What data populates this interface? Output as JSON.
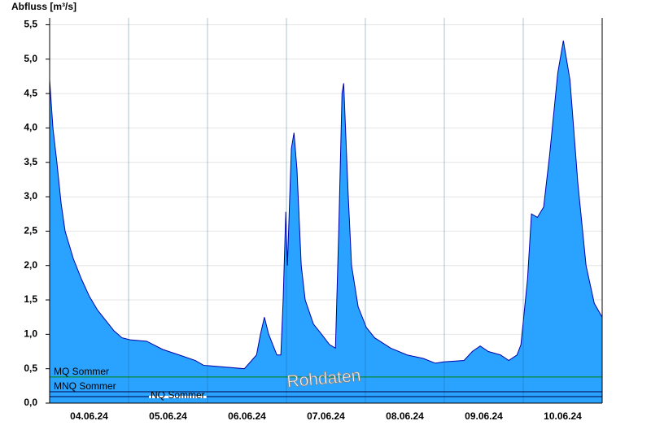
{
  "chart_data": {
    "type": "area",
    "y_label": "Abfluss [m³/s]",
    "watermark": "Rohdaten",
    "x": [
      0,
      1,
      2.2,
      3.5,
      4.7,
      7.2,
      9.7,
      12.1,
      14.6,
      17.1,
      19.6,
      22,
      24.5,
      29.5,
      34.4,
      39.4,
      44.3,
      46.8,
      59.2,
      62.9,
      64.1,
      65.3,
      66.6,
      69.1,
      70.3,
      71,
      71.8,
      72.3,
      73.5,
      74.3,
      75.2,
      76.5,
      77.7,
      80.2,
      82.7,
      85.1,
      86.9,
      87.9,
      88.9,
      89.4,
      90.8,
      91.8,
      93.8,
      96.3,
      98.8,
      103.7,
      108.7,
      113.6,
      117.3,
      119.8,
      126,
      128.5,
      130.9,
      133.4,
      137.1,
      139.6,
      142.1,
      143.3,
      145.3,
      146.5,
      148.3,
      150.2,
      152,
      154.5,
      156.2,
      158.2,
      160.6,
      163.1,
      165.6,
      168
    ],
    "series": [
      {
        "color": "#29a3ff",
        "line_color": "#0000aa",
        "values": [
          4.7,
          4.0,
          3.5,
          2.9,
          2.5,
          2.1,
          1.8,
          1.55,
          1.35,
          1.2,
          1.05,
          0.95,
          0.92,
          0.9,
          0.78,
          0.7,
          0.62,
          0.55,
          0.5,
          0.7,
          1.0,
          1.25,
          1.0,
          0.7,
          0.7,
          1.5,
          2.78,
          2.0,
          3.7,
          3.93,
          3.4,
          2.0,
          1.5,
          1.15,
          1.0,
          0.85,
          0.8,
          2.5,
          4.5,
          4.65,
          3.0,
          2.0,
          1.4,
          1.1,
          0.95,
          0.8,
          0.7,
          0.65,
          0.58,
          0.6,
          0.62,
          0.75,
          0.83,
          0.75,
          0.7,
          0.62,
          0.7,
          0.85,
          1.8,
          2.75,
          2.7,
          2.85,
          3.6,
          4.8,
          5.27,
          4.7,
          3.2,
          2.0,
          1.45,
          1.25
        ]
      }
    ],
    "xlim": [
      0,
      168
    ],
    "xticks": [
      {
        "value": 12,
        "label": "04.06.24"
      },
      {
        "value": 36,
        "label": "05.06.24"
      },
      {
        "value": 60,
        "label": "06.06.24"
      },
      {
        "value": 84,
        "label": "07.06.24"
      },
      {
        "value": 108,
        "label": "08.06.24"
      },
      {
        "value": 132,
        "label": "09.06.24"
      },
      {
        "value": 156,
        "label": "10.06.24"
      }
    ],
    "x_gridlines": [
      24,
      48,
      72,
      96,
      120,
      144
    ],
    "ylim": [
      0,
      5.6
    ],
    "yticks": [
      {
        "value": 0,
        "label": "0,0"
      },
      {
        "value": 0.5,
        "label": "0,5"
      },
      {
        "value": 1,
        "label": "1,0"
      },
      {
        "value": 1.5,
        "label": "1,5"
      },
      {
        "value": 2,
        "label": "2,0"
      },
      {
        "value": 2.5,
        "label": "2,5"
      },
      {
        "value": 3,
        "label": "3,0"
      },
      {
        "value": 3.5,
        "label": "3,5"
      },
      {
        "value": 4,
        "label": "4,0"
      },
      {
        "value": 4.5,
        "label": "4,5"
      },
      {
        "value": 5,
        "label": "5,0"
      },
      {
        "value": 5.5,
        "label": "5,5"
      }
    ],
    "grid": true,
    "reference_lines": [
      {
        "name": "MQ Sommer",
        "value": 0.38,
        "color": "#008000"
      },
      {
        "name": "MNQ Sommer",
        "value": 0.165,
        "color": "#000044"
      },
      {
        "name": "NQ Sommer",
        "value": 0.095,
        "color": "#000044"
      }
    ]
  }
}
